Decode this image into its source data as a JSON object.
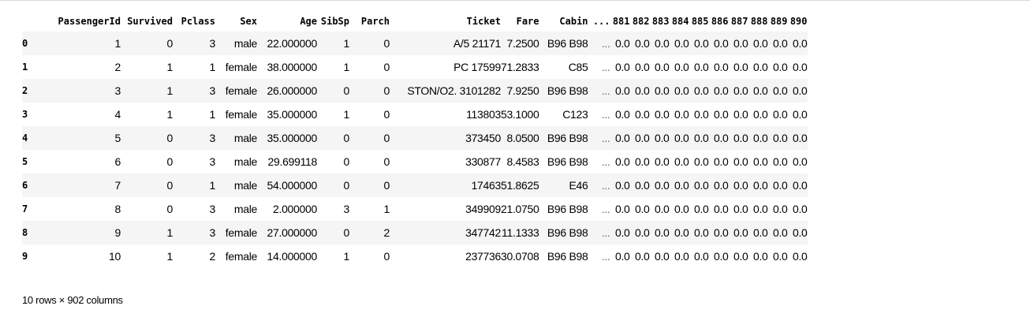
{
  "table": {
    "columns": [
      "PassengerId",
      "Survived",
      "Pclass",
      "Sex",
      "Age",
      "SibSp",
      "Parch",
      "Ticket",
      "Fare",
      "Cabin",
      "...",
      "881",
      "882",
      "883",
      "884",
      "885",
      "886",
      "887",
      "888",
      "889",
      "890"
    ],
    "index": [
      "0",
      "1",
      "2",
      "3",
      "4",
      "5",
      "6",
      "7",
      "8",
      "9"
    ],
    "rows": [
      [
        "1",
        "0",
        "3",
        "male",
        "22.000000",
        "1",
        "0",
        "A/5 21171",
        "7.2500",
        "B96 B98",
        "...",
        "0.0",
        "0.0",
        "0.0",
        "0.0",
        "0.0",
        "0.0",
        "0.0",
        "0.0",
        "0.0",
        "0.0"
      ],
      [
        "2",
        "1",
        "1",
        "female",
        "38.000000",
        "1",
        "0",
        "PC 17599",
        "71.2833",
        "C85",
        "...",
        "0.0",
        "0.0",
        "0.0",
        "0.0",
        "0.0",
        "0.0",
        "0.0",
        "0.0",
        "0.0",
        "0.0"
      ],
      [
        "3",
        "1",
        "3",
        "female",
        "26.000000",
        "0",
        "0",
        "STON/O2. 3101282",
        "7.9250",
        "B96 B98",
        "...",
        "0.0",
        "0.0",
        "0.0",
        "0.0",
        "0.0",
        "0.0",
        "0.0",
        "0.0",
        "0.0",
        "0.0"
      ],
      [
        "4",
        "1",
        "1",
        "female",
        "35.000000",
        "1",
        "0",
        "113803",
        "53.1000",
        "C123",
        "...",
        "0.0",
        "0.0",
        "0.0",
        "0.0",
        "0.0",
        "0.0",
        "0.0",
        "0.0",
        "0.0",
        "0.0"
      ],
      [
        "5",
        "0",
        "3",
        "male",
        "35.000000",
        "0",
        "0",
        "373450",
        "8.0500",
        "B96 B98",
        "...",
        "0.0",
        "0.0",
        "0.0",
        "0.0",
        "0.0",
        "0.0",
        "0.0",
        "0.0",
        "0.0",
        "0.0"
      ],
      [
        "6",
        "0",
        "3",
        "male",
        "29.699118",
        "0",
        "0",
        "330877",
        "8.4583",
        "B96 B98",
        "...",
        "0.0",
        "0.0",
        "0.0",
        "0.0",
        "0.0",
        "0.0",
        "0.0",
        "0.0",
        "0.0",
        "0.0"
      ],
      [
        "7",
        "0",
        "1",
        "male",
        "54.000000",
        "0",
        "0",
        "17463",
        "51.8625",
        "E46",
        "...",
        "0.0",
        "0.0",
        "0.0",
        "0.0",
        "0.0",
        "0.0",
        "0.0",
        "0.0",
        "0.0",
        "0.0"
      ],
      [
        "8",
        "0",
        "3",
        "male",
        "2.000000",
        "3",
        "1",
        "349909",
        "21.0750",
        "B96 B98",
        "...",
        "0.0",
        "0.0",
        "0.0",
        "0.0",
        "0.0",
        "0.0",
        "0.0",
        "0.0",
        "0.0",
        "0.0"
      ],
      [
        "9",
        "1",
        "3",
        "female",
        "27.000000",
        "0",
        "2",
        "347742",
        "11.1333",
        "B96 B98",
        "...",
        "0.0",
        "0.0",
        "0.0",
        "0.0",
        "0.0",
        "0.0",
        "0.0",
        "0.0",
        "0.0",
        "0.0"
      ],
      [
        "10",
        "1",
        "2",
        "female",
        "14.000000",
        "1",
        "0",
        "237736",
        "30.0708",
        "B96 B98",
        "...",
        "0.0",
        "0.0",
        "0.0",
        "0.0",
        "0.0",
        "0.0",
        "0.0",
        "0.0",
        "0.0",
        "0.0"
      ]
    ]
  },
  "footer": {
    "text": "10 rows × 902 columns"
  }
}
